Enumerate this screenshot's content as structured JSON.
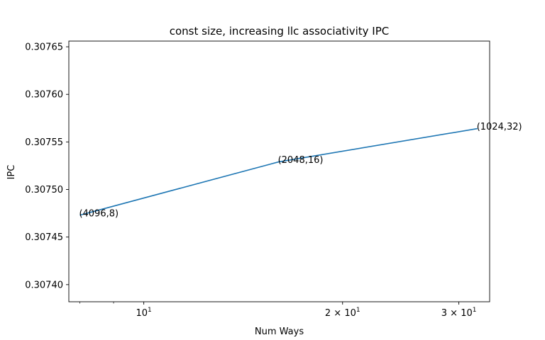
{
  "chart_data": {
    "type": "line",
    "title": "const size, increasing llc associativity IPC",
    "xlabel": "Num Ways",
    "ylabel": "IPC",
    "xscale": "log",
    "grid": false,
    "legend": "none",
    "ylim": [
      0.307382,
      0.307656
    ],
    "xlim": [
      7.7,
      33.4
    ],
    "x_major_ticks": [
      {
        "value": 10,
        "label_base": "10",
        "label_exp": "1",
        "label_coef": ""
      },
      {
        "value": 20,
        "label_base": "10",
        "label_exp": "1",
        "label_coef": "2 × "
      },
      {
        "value": 30,
        "label_base": "10",
        "label_exp": "1",
        "label_coef": "3 × "
      }
    ],
    "x_minor_ticks": [
      8,
      9
    ],
    "y_ticks": [
      {
        "value": 0.3074,
        "label": "0.30740"
      },
      {
        "value": 0.30745,
        "label": "0.30745"
      },
      {
        "value": 0.3075,
        "label": "0.30750"
      },
      {
        "value": 0.30755,
        "label": "0.30755"
      },
      {
        "value": 0.3076,
        "label": "0.30760"
      },
      {
        "value": 0.30765,
        "label": "0.30765"
      }
    ],
    "series": [
      {
        "color": "#1f77b4",
        "points": [
          {
            "x": 8,
            "y": 0.307473,
            "label": "(4096,8)"
          },
          {
            "x": 16,
            "y": 0.307529,
            "label": "(2048,16)"
          },
          {
            "x": 32,
            "y": 0.307564,
            "label": "(1024,32)"
          }
        ]
      }
    ]
  }
}
